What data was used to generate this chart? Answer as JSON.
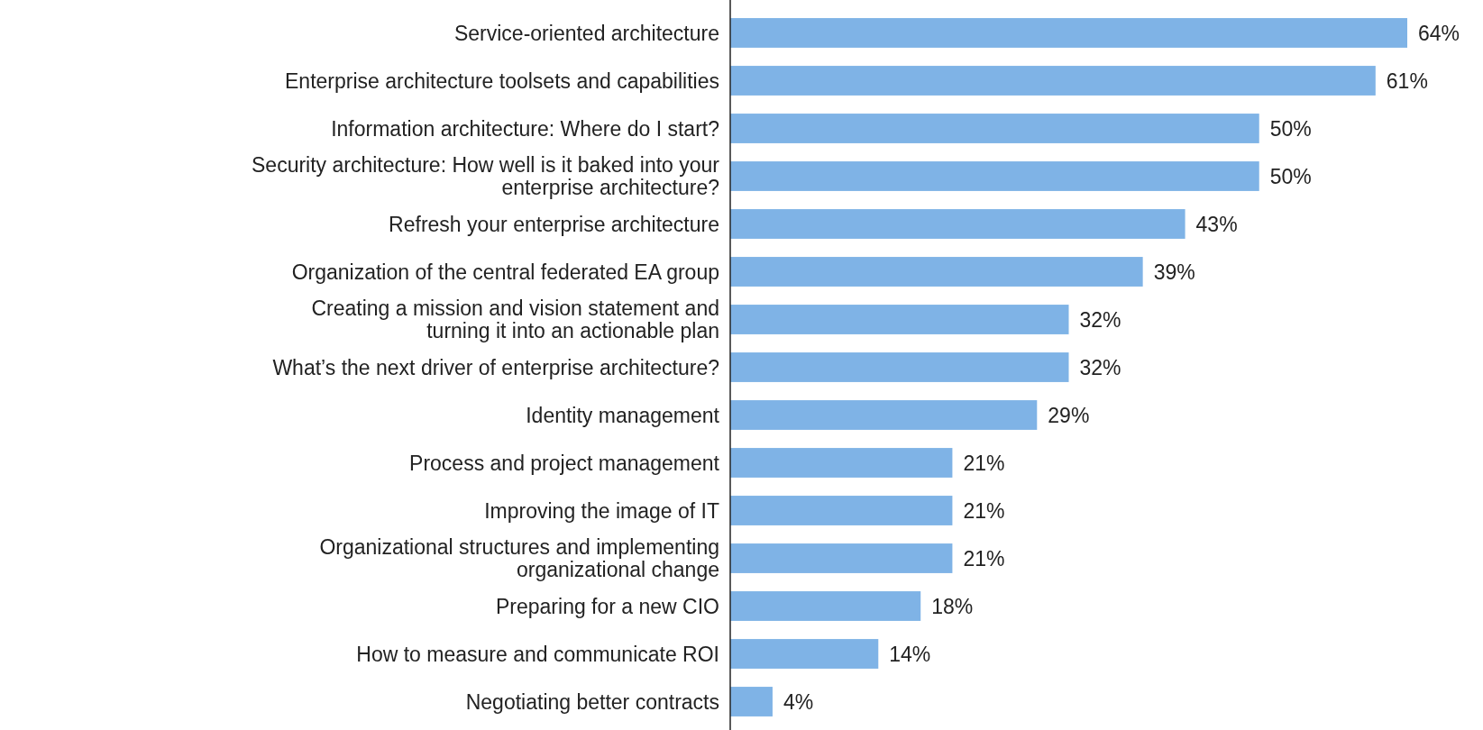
{
  "chart_data": {
    "type": "bar",
    "orientation": "horizontal",
    "color": "#7fb3e6",
    "categories": [
      "Service-oriented architecture",
      "Enterprise architecture toolsets and capabilities",
      "Information architecture: Where do I start?",
      "Security architecture: How well is it baked into your\nenterprise architecture?",
      "Refresh your enterprise architecture",
      "Organization of the central federated EA group",
      "Creating a mission and vision statement and\nturning it into an actionable plan",
      "What’s the next driver of enterprise architecture?",
      "Identity management",
      "Process and project management",
      "Improving the image of IT",
      "Organizational structures and implementing\norganizational change",
      "Preparing for a new CIO",
      "How to measure and communicate ROI",
      "Negotiating better contracts"
    ],
    "values": [
      64,
      61,
      50,
      50,
      43,
      39,
      32,
      32,
      29,
      21,
      21,
      21,
      18,
      14,
      4
    ],
    "value_labels": [
      "64%",
      "61%",
      "50%",
      "50%",
      "43%",
      "39%",
      "32%",
      "32%",
      "29%",
      "21%",
      "21%",
      "21%",
      "18%",
      "14%",
      "4%"
    ]
  }
}
